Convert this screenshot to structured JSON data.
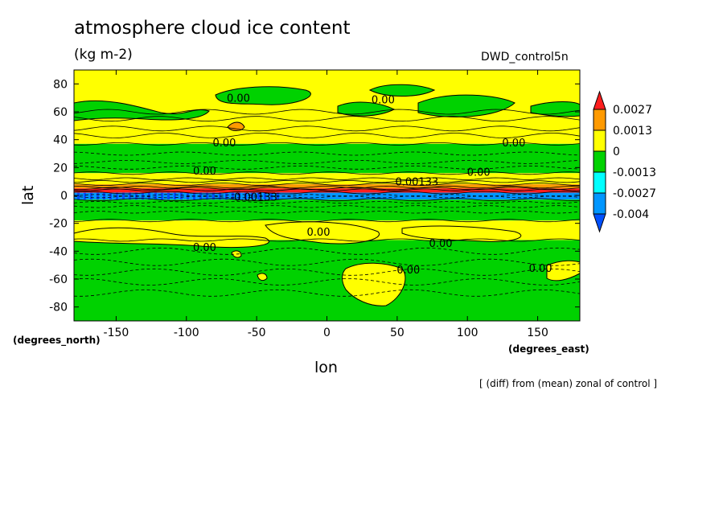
{
  "chart_data": {
    "type": "heatmap",
    "title": "atmosphere cloud ice content",
    "units": "(kg m-2)",
    "run_label": "DWD_control5n",
    "xlabel": "lon",
    "xunits": "(degrees_east)",
    "ylabel": "lat",
    "yunits": "(degrees_north)",
    "note": "[ (diff) from (mean) zonal of control ]",
    "xlim": [
      -180,
      180
    ],
    "ylim": [
      -90,
      90
    ],
    "xticks": [
      -150,
      -100,
      -50,
      0,
      50,
      100,
      150
    ],
    "yticks": [
      -80,
      -60,
      -40,
      -20,
      0,
      20,
      40,
      60,
      80
    ],
    "colorbar": {
      "labels": [
        "0.0027",
        "0.0013",
        "0",
        "-0.0013",
        "-0.0027",
        "-0.004"
      ],
      "colors": [
        "#ff1e1e",
        "#ff9a00",
        "#ffff00",
        "#00d200",
        "#00ffff",
        "#0096ff",
        "#0050ff"
      ]
    },
    "bands": [
      {
        "lat_top": 90,
        "lat_bottom": 37,
        "color": "#ffff00"
      },
      {
        "lat_top": 37,
        "lat_bottom": 16,
        "color": "#00d200"
      },
      {
        "lat_top": 16,
        "lat_bottom": 8,
        "color": "#ffff00"
      },
      {
        "lat_top": 8,
        "lat_bottom": 5,
        "color": "#ff9a00"
      },
      {
        "lat_top": 5,
        "lat_bottom": 2,
        "color": "#ff1e1e"
      },
      {
        "lat_top": 2,
        "lat_bottom": -3,
        "color": "#0096ff"
      },
      {
        "lat_top": -3,
        "lat_bottom": -18,
        "color": "#00d200"
      },
      {
        "lat_top": -18,
        "lat_bottom": -32,
        "color": "#ffff00"
      },
      {
        "lat_top": -32,
        "lat_bottom": -90,
        "color": "#00d200"
      }
    ],
    "contour_labels": [
      {
        "text": "0.00",
        "lon": -63,
        "lat": 70
      },
      {
        "text": "0.00",
        "lon": 40,
        "lat": 69
      },
      {
        "text": "0.00",
        "lon": -73,
        "lat": 38
      },
      {
        "text": "0.00",
        "lon": 133,
        "lat": 38
      },
      {
        "text": "0.00",
        "lon": -87,
        "lat": 18
      },
      {
        "text": "0.00",
        "lon": 108,
        "lat": 17
      },
      {
        "text": "0.00133",
        "lon": 64,
        "lat": 10
      },
      {
        "text": "-0.00133",
        "lon": -52,
        "lat": -1
      },
      {
        "text": "0.00",
        "lon": -6,
        "lat": -26
      },
      {
        "text": "0.00",
        "lon": 81,
        "lat": -34
      },
      {
        "text": "0.00",
        "lon": -87,
        "lat": -37
      },
      {
        "text": "0.00",
        "lon": 58,
        "lat": -53
      },
      {
        "text": "0.00",
        "lon": 152,
        "lat": -52
      }
    ]
  }
}
